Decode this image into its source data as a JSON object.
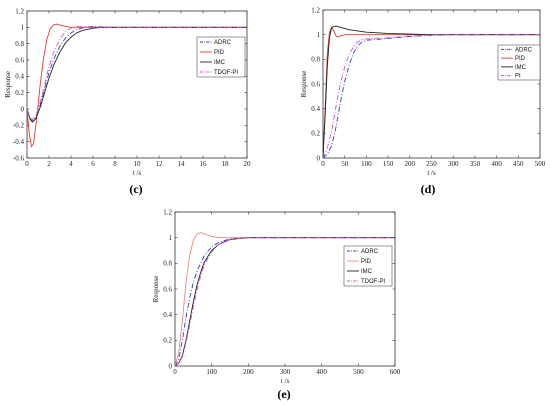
{
  "chart_data": [
    {
      "type": "line",
      "caption": "(c)",
      "xlabel": "t /s",
      "ylabel": "Response",
      "xlim": [
        0,
        20
      ],
      "ylim": [
        -0.6,
        1.2
      ],
      "xticks": [
        "0",
        "2",
        "4",
        "6",
        "8",
        "10",
        "12",
        "14",
        "16",
        "18",
        "20"
      ],
      "yticks": [
        "-0.6",
        "-0.4",
        "-0.2",
        "0",
        "0.2",
        "0.4",
        "0.6",
        "0.8",
        "1",
        "1.2"
      ],
      "legend_position": "right-middle",
      "series": [
        {
          "name": "ADRC",
          "color": "#2a3fbf",
          "dash": "dashdot",
          "points": [
            [
              0,
              0
            ],
            [
              0.3,
              -0.12
            ],
            [
              0.5,
              -0.15
            ],
            [
              0.8,
              -0.1
            ],
            [
              1.2,
              0.05
            ],
            [
              1.6,
              0.25
            ],
            [
              2,
              0.45
            ],
            [
              2.5,
              0.63
            ],
            [
              3,
              0.77
            ],
            [
              3.5,
              0.87
            ],
            [
              4,
              0.93
            ],
            [
              4.5,
              0.97
            ],
            [
              5,
              0.99
            ],
            [
              5.5,
              1.01
            ],
            [
              6,
              1.01
            ],
            [
              7,
              1.005
            ],
            [
              8,
              1
            ],
            [
              10,
              1
            ],
            [
              20,
              1
            ]
          ]
        },
        {
          "name": "PID",
          "color": "#e03a2a",
          "dash": "solid",
          "points": [
            [
              0,
              0
            ],
            [
              0.2,
              -0.3
            ],
            [
              0.4,
              -0.46
            ],
            [
              0.6,
              -0.42
            ],
            [
              0.9,
              -0.1
            ],
            [
              1.2,
              0.3
            ],
            [
              1.5,
              0.62
            ],
            [
              1.8,
              0.85
            ],
            [
              2.1,
              0.98
            ],
            [
              2.4,
              1.03
            ],
            [
              2.7,
              1.04
            ],
            [
              3.2,
              1.02
            ],
            [
              4,
              1.0
            ],
            [
              5,
              1
            ],
            [
              20,
              1
            ]
          ]
        },
        {
          "name": "IMC",
          "color": "#222222",
          "dash": "solid",
          "points": [
            [
              0,
              0
            ],
            [
              0.3,
              -0.13
            ],
            [
              0.5,
              -0.16
            ],
            [
              0.8,
              -0.12
            ],
            [
              1.2,
              0.02
            ],
            [
              1.6,
              0.2
            ],
            [
              2,
              0.38
            ],
            [
              2.5,
              0.56
            ],
            [
              3,
              0.7
            ],
            [
              3.5,
              0.81
            ],
            [
              4,
              0.88
            ],
            [
              4.5,
              0.93
            ],
            [
              5,
              0.96
            ],
            [
              6,
              0.99
            ],
            [
              7,
              1
            ],
            [
              20,
              1
            ]
          ]
        },
        {
          "name": "TDOF-PI",
          "color": "#d94fd3",
          "dash": "dashdot",
          "points": [
            [
              0,
              0
            ],
            [
              0.3,
              -0.1
            ],
            [
              0.5,
              -0.13
            ],
            [
              0.8,
              -0.09
            ],
            [
              1.2,
              0.08
            ],
            [
              1.6,
              0.3
            ],
            [
              2,
              0.52
            ],
            [
              2.5,
              0.72
            ],
            [
              3,
              0.86
            ],
            [
              3.5,
              0.95
            ],
            [
              4,
              0.99
            ],
            [
              4.5,
              1.01
            ],
            [
              5,
              1.01
            ],
            [
              6,
              1.0
            ],
            [
              20,
              1
            ]
          ]
        }
      ]
    },
    {
      "type": "line",
      "caption": "(d)",
      "xlabel": "t /s",
      "ylabel": "Response",
      "xlim": [
        0,
        500
      ],
      "ylim": [
        0,
        1.2
      ],
      "xticks": [
        "0",
        "50",
        "100",
        "150",
        "200",
        "250",
        "300",
        "350",
        "400",
        "450",
        "500"
      ],
      "yticks": [
        "0",
        "0.2",
        "0.4",
        "0.6",
        "0.8",
        "1",
        "1.2"
      ],
      "legend_position": "top-right",
      "series": [
        {
          "name": "ADRC",
          "color": "#2a3fbf",
          "dash": "dashdot",
          "points": [
            [
              0,
              0
            ],
            [
              10,
              0.03
            ],
            [
              20,
              0.1
            ],
            [
              30,
              0.25
            ],
            [
              40,
              0.45
            ],
            [
              50,
              0.62
            ],
            [
              60,
              0.75
            ],
            [
              70,
              0.85
            ],
            [
              80,
              0.91
            ],
            [
              90,
              0.94
            ],
            [
              100,
              0.955
            ],
            [
              120,
              0.96
            ],
            [
              150,
              0.97
            ],
            [
              200,
              0.985
            ],
            [
              250,
              0.995
            ],
            [
              300,
              1
            ],
            [
              500,
              1
            ]
          ]
        },
        {
          "name": "PID",
          "color": "#e03a2a",
          "dash": "solid",
          "points": [
            [
              0,
              0
            ],
            [
              5,
              0.4
            ],
            [
              10,
              0.85
            ],
            [
              15,
              1.02
            ],
            [
              20,
              1.06
            ],
            [
              25,
              1.03
            ],
            [
              30,
              0.99
            ],
            [
              35,
              0.98
            ],
            [
              40,
              0.99
            ],
            [
              50,
              1.0
            ],
            [
              500,
              1
            ]
          ]
        },
        {
          "name": "IMC",
          "color": "#222222",
          "dash": "solid",
          "points": [
            [
              0,
              0
            ],
            [
              5,
              0.35
            ],
            [
              10,
              0.75
            ],
            [
              15,
              0.98
            ],
            [
              20,
              1.06
            ],
            [
              30,
              1.07
            ],
            [
              40,
              1.06
            ],
            [
              60,
              1.04
            ],
            [
              80,
              1.03
            ],
            [
              100,
              1.02
            ],
            [
              150,
              1.01
            ],
            [
              200,
              1.005
            ],
            [
              250,
              1
            ],
            [
              500,
              1
            ]
          ]
        },
        {
          "name": "PI",
          "color": "#d94fd3",
          "dash": "dashdot",
          "points": [
            [
              0,
              0
            ],
            [
              10,
              0.08
            ],
            [
              20,
              0.22
            ],
            [
              30,
              0.42
            ],
            [
              40,
              0.6
            ],
            [
              50,
              0.74
            ],
            [
              60,
              0.84
            ],
            [
              70,
              0.9
            ],
            [
              80,
              0.94
            ],
            [
              90,
              0.96
            ],
            [
              100,
              0.965
            ],
            [
              150,
              0.975
            ],
            [
              200,
              0.99
            ],
            [
              250,
              0.998
            ],
            [
              300,
              1
            ],
            [
              500,
              1
            ]
          ]
        }
      ]
    },
    {
      "type": "line",
      "caption": "(e)",
      "xlabel": "t /s",
      "ylabel": "Response",
      "xlim": [
        0,
        600
      ],
      "ylim": [
        0,
        1.2
      ],
      "xticks": [
        "0",
        "100",
        "200",
        "300",
        "400",
        "500",
        "600"
      ],
      "yticks": [
        "0",
        "0.2",
        "0.4",
        "0.6",
        "0.8",
        "1",
        "1.2"
      ],
      "legend_position": "right-middle",
      "series": [
        {
          "name": "ADRC",
          "color": "#2a3fbf",
          "dash": "dashdot",
          "points": [
            [
              0,
              0
            ],
            [
              10,
              0.05
            ],
            [
              20,
              0.2
            ],
            [
              30,
              0.38
            ],
            [
              40,
              0.53
            ],
            [
              50,
              0.65
            ],
            [
              60,
              0.74
            ],
            [
              80,
              0.86
            ],
            [
              100,
              0.93
            ],
            [
              120,
              0.965
            ],
            [
              150,
              0.99
            ],
            [
              200,
              1
            ],
            [
              600,
              1
            ]
          ]
        },
        {
          "name": "PID",
          "color": "#e88b7e",
          "dash": "solid",
          "points": [
            [
              0,
              0
            ],
            [
              10,
              0.1
            ],
            [
              20,
              0.35
            ],
            [
              30,
              0.65
            ],
            [
              40,
              0.86
            ],
            [
              50,
              0.98
            ],
            [
              60,
              1.03
            ],
            [
              70,
              1.04
            ],
            [
              80,
              1.03
            ],
            [
              100,
              1.01
            ],
            [
              120,
              1.0
            ],
            [
              600,
              1
            ]
          ]
        },
        {
          "name": "IMC",
          "color": "#222222",
          "dash": "solid",
          "points": [
            [
              0,
              0
            ],
            [
              10,
              0.02
            ],
            [
              20,
              0.08
            ],
            [
              30,
              0.2
            ],
            [
              40,
              0.35
            ],
            [
              50,
              0.5
            ],
            [
              60,
              0.63
            ],
            [
              70,
              0.73
            ],
            [
              80,
              0.81
            ],
            [
              100,
              0.9
            ],
            [
              120,
              0.95
            ],
            [
              150,
              0.985
            ],
            [
              180,
              0.995
            ],
            [
              200,
              1
            ],
            [
              600,
              1
            ]
          ]
        },
        {
          "name": "TDOF-PI",
          "color": "#d94fd3",
          "dash": "dashdot",
          "points": [
            [
              0,
              0
            ],
            [
              10,
              0.02
            ],
            [
              20,
              0.07
            ],
            [
              30,
              0.18
            ],
            [
              40,
              0.32
            ],
            [
              50,
              0.46
            ],
            [
              60,
              0.59
            ],
            [
              70,
              0.7
            ],
            [
              80,
              0.79
            ],
            [
              100,
              0.89
            ],
            [
              120,
              0.95
            ],
            [
              150,
              0.985
            ],
            [
              200,
              1
            ],
            [
              600,
              1
            ]
          ]
        }
      ]
    }
  ]
}
